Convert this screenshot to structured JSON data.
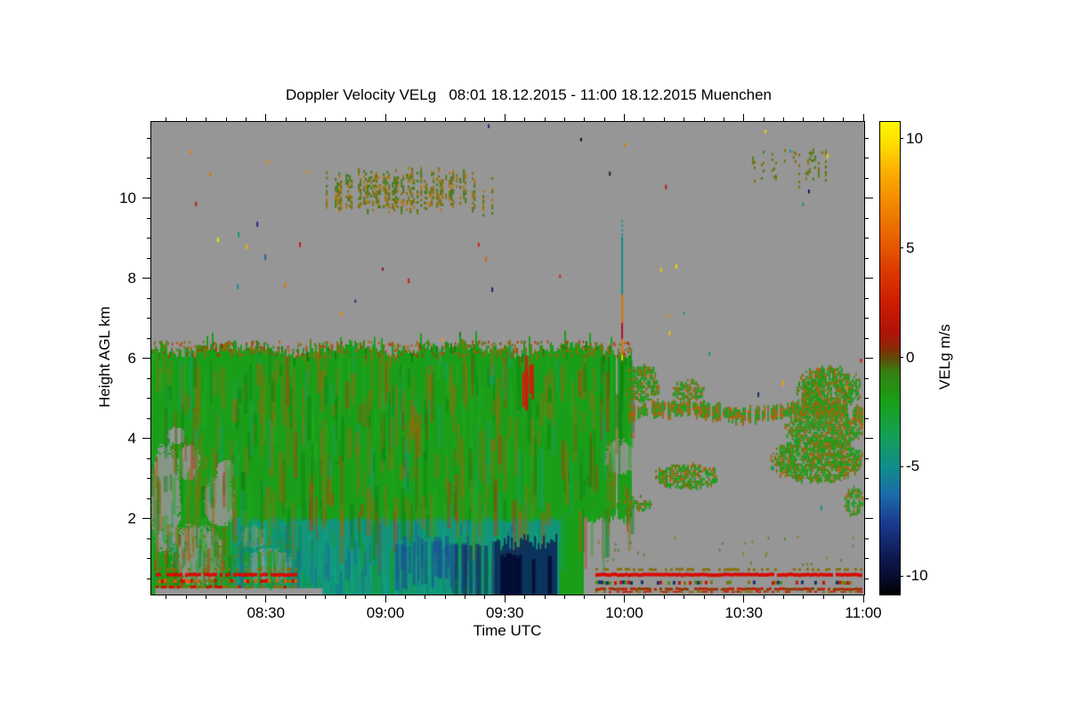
{
  "title": "Doppler Velocity VELg   08:01 18.12.2015 - 11:00 18.12.2015 Muenchen",
  "chart_data": {
    "type": "heatmap",
    "title": "Doppler Velocity VELg   08:01 18.12.2015 - 11:00 18.12.2015 Muenchen",
    "site": "Muenchen",
    "date": "18.12.2015",
    "time_span": "08:01 - 11:00",
    "xlabel": "Time UTC",
    "ylabel": "Height AGL km",
    "x_range_minutes": [
      481,
      660
    ],
    "x_ticks": [
      {
        "minute": 510,
        "label": "08:30"
      },
      {
        "minute": 540,
        "label": "09:00"
      },
      {
        "minute": 570,
        "label": "09:30"
      },
      {
        "minute": 600,
        "label": "10:00"
      },
      {
        "minute": 630,
        "label": "10:30"
      },
      {
        "minute": 660,
        "label": "11:00"
      }
    ],
    "x_minor_step_minutes": 5,
    "y_range_km": [
      0.13,
      11.93
    ],
    "y_ticks_km": [
      2,
      4,
      6,
      8,
      10
    ],
    "y_minor_step_km": 0.5,
    "grid": false,
    "background_color": "#969696",
    "colorbar": {
      "label": "VELg m/s",
      "units": "m/s",
      "range": [
        -10.8,
        10.8
      ],
      "ticks": [
        10,
        5,
        0,
        -5,
        -10
      ],
      "stops": [
        {
          "v": 10.8,
          "c": "#FFF500"
        },
        {
          "v": 10.0,
          "c": "#FFE300"
        },
        {
          "v": 8.5,
          "c": "#FBAE00"
        },
        {
          "v": 7.0,
          "c": "#F28600"
        },
        {
          "v": 5.5,
          "c": "#E86200"
        },
        {
          "v": 4.0,
          "c": "#DC3A00"
        },
        {
          "v": 2.5,
          "c": "#CC1C00"
        },
        {
          "v": 1.2,
          "c": "#B01208"
        },
        {
          "v": 0.5,
          "c": "#8C2806"
        },
        {
          "v": 0.0,
          "c": "#5E4A08"
        },
        {
          "v": -0.6,
          "c": "#377E0E"
        },
        {
          "v": -2.0,
          "c": "#17A017"
        },
        {
          "v": -3.5,
          "c": "#14A054"
        },
        {
          "v": -5.0,
          "c": "#108C8C"
        },
        {
          "v": -6.2,
          "c": "#1A6CA8"
        },
        {
          "v": -7.5,
          "c": "#1A3C90"
        },
        {
          "v": -9.0,
          "c": "#0E1A55"
        },
        {
          "v": -10.0,
          "c": "#060D30"
        },
        {
          "v": -10.8,
          "c": "#000000"
        }
      ]
    },
    "features": {
      "cloud": {
        "t": [
          481,
          589.6
        ],
        "t_ext": [
          589.6,
          601.5
        ],
        "ext_h_min": 2.0,
        "top_h": 6.28,
        "base_color": "#1A9E1A"
      },
      "cloud_streak_colors": [
        "#85700E",
        "#0E7E0E",
        "#22A822",
        "#B05A08",
        "#C03008",
        "#12A06A"
      ],
      "teal_band": {
        "t": [
          500.9,
          583.3
        ],
        "h_top": 2.0,
        "color": "#12967C"
      },
      "teal_streak_colors": [
        "#0FA98C",
        "#0D8670",
        "#16A016",
        "#1D5F9E"
      ],
      "gray_holes": [
        [
          484.4,
          2.51,
          3.6,
          1.38
        ],
        [
          492.4,
          1.13,
          6.3,
          0.76
        ],
        [
          498.0,
          2.47,
          4.0,
          0.62
        ],
        [
          490.2,
          3.44,
          2.7,
          0.44
        ],
        [
          499.5,
          3.22,
          2.2,
          0.31
        ],
        [
          510.3,
          0.84,
          5.8,
          0.44
        ],
        [
          506.3,
          1.58,
          3.1,
          0.27
        ],
        [
          487.0,
          4.11,
          2.2,
          0.22
        ],
        [
          598.5,
          3.58,
          3.6,
          0.44
        ]
      ],
      "red_streak": {
        "t": [
          574,
          576.5
        ],
        "h": [
          4.85,
          6.2
        ],
        "color": "#D41808"
      },
      "blue_streaks": {
        "t": [
          541.6,
          561.7
        ],
        "h": [
          0.3,
          1.6
        ],
        "color": "#1C4E96"
      },
      "dark_hangers": {
        "t": [
          553.5,
          566.5
        ],
        "h": [
          0.13,
          1.5
        ],
        "color": "#123060"
      },
      "navy_blob": {
        "t": [
          567.3,
          582.9
        ],
        "h": [
          0.13,
          1.45
        ],
        "color": "#0B2258",
        "core_color": "#040C34"
      },
      "green_columns": {
        "t": [
          504,
          512
        ],
        "h": [
          0.13,
          1.2
        ],
        "color": "#16A016"
      },
      "bottom_gray_row": {
        "t": [
          482,
          524
        ],
        "h": [
          0.13,
          0.29
        ]
      },
      "bottom_left_speckle": {
        "t": [
          482,
          517
        ],
        "h": [
          0.3,
          1.9
        ],
        "density": 0.3,
        "colors": [
          "#85700E",
          "#2E8E12"
        ]
      },
      "upper_band_1": {
        "t": [
          524.4,
          566.8
        ],
        "h": [
          9.62,
          10.82
        ],
        "density": 0.75,
        "colors": [
          "#85700E",
          "#3E7E14",
          "#B07808",
          "#557010"
        ]
      },
      "upper_band_2": {
        "t": [
          628.7,
          652.2
        ],
        "h": [
          10.29,
          11.29
        ],
        "density": 0.3,
        "colors": [
          "#85700E",
          "#6E7A10",
          "#3E7E14"
        ]
      },
      "blob_colors": [
        "#1E9E1E",
        "#85700E",
        "#2E8E12",
        "#B06008"
      ],
      "right_band": {
        "t": [
          600.8,
          659.5
        ],
        "h_center": 4.7,
        "h_thick": 0.3
      },
      "right_blobs": [
        {
          "t": [
            599.7,
            608.6
          ],
          "h": [
            4.96,
            5.89
          ],
          "d": 0.8
        },
        {
          "t": [
            643.0,
            659.0
          ],
          "h": [
            4.73,
            5.85
          ],
          "d": 0.8
        },
        {
          "t": [
            640.0,
            659.5
          ],
          "h": [
            3.84,
            4.73
          ],
          "d": 0.85
        },
        {
          "t": [
            636.5,
            659.5
          ],
          "h": [
            2.96,
            4.07
          ],
          "d": 0.8
        },
        {
          "t": [
            655.0,
            659.5
          ],
          "h": [
            2.11,
            2.84
          ],
          "d": 0.7
        },
        {
          "t": [
            607.5,
            623.1
          ],
          "h": [
            2.78,
            3.44
          ],
          "d": 0.7
        },
        {
          "t": [
            611.9,
            619.8
          ],
          "h": [
            4.96,
            5.51
          ],
          "d": 0.7
        },
        {
          "t": [
            597.4,
            606.4
          ],
          "h": [
            2.24,
            2.62
          ],
          "d": 0.6
        }
      ],
      "stripe_rows_left": {
        "t": [
          482.1,
          517.4
        ],
        "rows": [
          {
            "h": 0.79,
            "th": 3,
            "density": 0.45,
            "colors": [
              "#85700E"
            ]
          },
          {
            "h": 0.667,
            "th": 4,
            "density": 0.85,
            "colors": [
              "#D80A00"
            ]
          },
          {
            "h": 0.51,
            "th": 4,
            "density": 0.6,
            "colors": [
              "#E06000",
              "#C41400",
              "#85700E"
            ]
          },
          {
            "h": 0.356,
            "th": 3,
            "density": 0.7,
            "colors": [
              "#D80A00",
              "#85700E"
            ]
          }
        ]
      },
      "stripe_rows_right": {
        "t": [
          592.5,
          659.3
        ],
        "rows": [
          {
            "h": 0.79,
            "th": 3,
            "density": 0.5,
            "colors": [
              "#85700E"
            ]
          },
          {
            "h": 0.667,
            "th": 4,
            "density": 0.97,
            "colors": [
              "#D80A00"
            ]
          },
          {
            "h": 0.47,
            "th": 4,
            "density": 0.5,
            "colors": [
              "#85700E",
              "#4E8E10",
              "#C41400",
              "#10306E"
            ]
          },
          {
            "h": 0.3,
            "th": 3,
            "density": 0.85,
            "colors": [
              "#C22000",
              "#8A3A00"
            ]
          },
          {
            "h": 0.22,
            "th": 2,
            "density": 0.6,
            "colors": [
              "#C22000",
              "#85700E"
            ]
          }
        ]
      },
      "right_sparse_specks": {
        "t": [
          593,
          659
        ],
        "h": [
          0.9,
          1.6
        ],
        "n": 28,
        "colors": [
          "#85700E",
          "#3E7E14"
        ]
      },
      "artifact_column": {
        "t": 599.0,
        "segments": [
          {
            "h": [
              9.07,
              9.47
            ],
            "color": "#0F8E8E",
            "dash": true
          },
          {
            "h": [
              7.62,
              9.07
            ],
            "color": "#0F8E8E"
          },
          {
            "h": [
              6.91,
              7.62
            ],
            "color": "#E07000"
          },
          {
            "h": [
              6.51,
              6.91
            ],
            "color": "#B01030"
          },
          {
            "h": [
              6.11,
              6.51
            ],
            "color": "#E07000"
          },
          {
            "h": [
              5.98,
              6.11
            ],
            "color": "#F5D000"
          }
        ]
      },
      "specks": [
        [
          565.5,
          11.87,
          "#1A2A6E"
        ],
        [
          490.8,
          11.22,
          "#E08000"
        ],
        [
          510.1,
          10.98,
          "#E88C00"
        ],
        [
          520.1,
          10.71,
          "#F09000"
        ],
        [
          495.5,
          10.67,
          "#D07800"
        ],
        [
          492.0,
          9.93,
          "#C41410"
        ],
        [
          507.4,
          9.44,
          "#15307E"
        ],
        [
          502.7,
          9.18,
          "#12966E"
        ],
        [
          497.5,
          9.04,
          "#F0E000"
        ],
        [
          504.7,
          8.87,
          "#F0B000"
        ],
        [
          518.1,
          8.93,
          "#C82010"
        ],
        [
          509.4,
          8.62,
          "#2A5A9E"
        ],
        [
          538.9,
          8.29,
          "#8E1010"
        ],
        [
          545.4,
          8.02,
          "#C41818"
        ],
        [
          502.5,
          7.87,
          "#0F8E8E"
        ],
        [
          514.3,
          7.91,
          "#E07800"
        ],
        [
          532.0,
          7.49,
          "#10307E"
        ],
        [
          528.4,
          7.2,
          "#E08800"
        ],
        [
          563.0,
          8.91,
          "#C62020"
        ],
        [
          564.8,
          8.56,
          "#E06000"
        ],
        [
          566.4,
          7.8,
          "#0E2A66"
        ],
        [
          553.9,
          6.53,
          "#F0A000"
        ],
        [
          595.9,
          10.69,
          "#202020"
        ],
        [
          610.0,
          10.36,
          "#C41414"
        ],
        [
          608.8,
          8.29,
          "#F0C800"
        ],
        [
          612.6,
          8.38,
          "#F0D000"
        ],
        [
          610.6,
          7.13,
          "#E89000"
        ],
        [
          610.9,
          6.71,
          "#F0C000"
        ],
        [
          614.6,
          7.18,
          "#109A8A"
        ],
        [
          635.0,
          11.73,
          "#F0D800"
        ],
        [
          650.6,
          11.13,
          "#F0D000"
        ],
        [
          641.2,
          11.24,
          "#12968C"
        ],
        [
          645.9,
          10.24,
          "#15156E"
        ],
        [
          644.4,
          9.91,
          "#0F8E8E"
        ],
        [
          588.7,
          11.53,
          "#101018"
        ],
        [
          583.4,
          8.11,
          "#C03000"
        ],
        [
          599.7,
          11.4,
          "#E07800"
        ],
        [
          639.4,
          5.47,
          "#F0A000"
        ],
        [
          633.2,
          5.18,
          "#10306E"
        ],
        [
          620.9,
          6.18,
          "#0F8E8E"
        ],
        [
          659.0,
          6.02,
          "#C42010"
        ],
        [
          655.5,
          5.35,
          "#E87800"
        ],
        [
          649.0,
          2.35,
          "#0F8E8E"
        ],
        [
          636.9,
          3.35,
          "#0F8E8E"
        ]
      ]
    }
  }
}
